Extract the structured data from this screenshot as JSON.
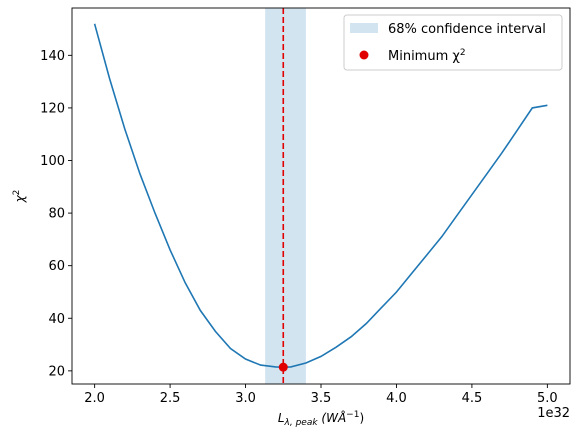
{
  "chart_data": {
    "type": "line",
    "x_multiplier_label": "1e32",
    "xlabel_main": "L",
    "xlabel_sub": "λ, peak",
    "xlabel_units": "(WÅ",
    "xlabel_units_exp": "−1",
    "xlabel_units_close": ")",
    "ylabel_main": "χ",
    "ylabel_exp": "2",
    "xlim": [
      1.85,
      5.15
    ],
    "ylim": [
      15,
      158
    ],
    "x_ticks": [
      "2.0",
      "2.5",
      "3.0",
      "3.5",
      "4.0",
      "4.5",
      "5.0"
    ],
    "y_ticks": [
      "20",
      "40",
      "60",
      "80",
      "100",
      "120",
      "140"
    ],
    "grid": false,
    "legend_placement": "top-right",
    "series": [
      {
        "name": "",
        "color": "#1f77b4",
        "x": [
          2.0,
          2.1,
          2.2,
          2.3,
          2.4,
          2.5,
          2.6,
          2.7,
          2.8,
          2.9,
          3.0,
          3.1,
          3.2,
          3.25,
          3.3,
          3.4,
          3.5,
          3.6,
          3.7,
          3.8,
          3.9,
          4.0,
          4.1,
          4.2,
          4.3,
          4.4,
          4.5,
          4.6,
          4.7,
          4.8,
          4.9,
          5.0
        ],
        "y": [
          152,
          131,
          112,
          95,
          80,
          66,
          53.5,
          43,
          35,
          28.5,
          24.5,
          22.2,
          21.5,
          21.4,
          21.5,
          23,
          25.5,
          29,
          33,
          38,
          44,
          50,
          57,
          64,
          71,
          79,
          87,
          95,
          103,
          111.5,
          120,
          121
        ]
      }
    ],
    "confidence_interval": {
      "label": "68% confidence interval",
      "x_range": [
        3.13,
        3.4
      ],
      "color": "#1f77b4"
    },
    "minimum": {
      "label_main": "Minimum χ",
      "label_exp": "2",
      "x": 3.25,
      "y": 21.4,
      "color": "#e00000"
    }
  }
}
